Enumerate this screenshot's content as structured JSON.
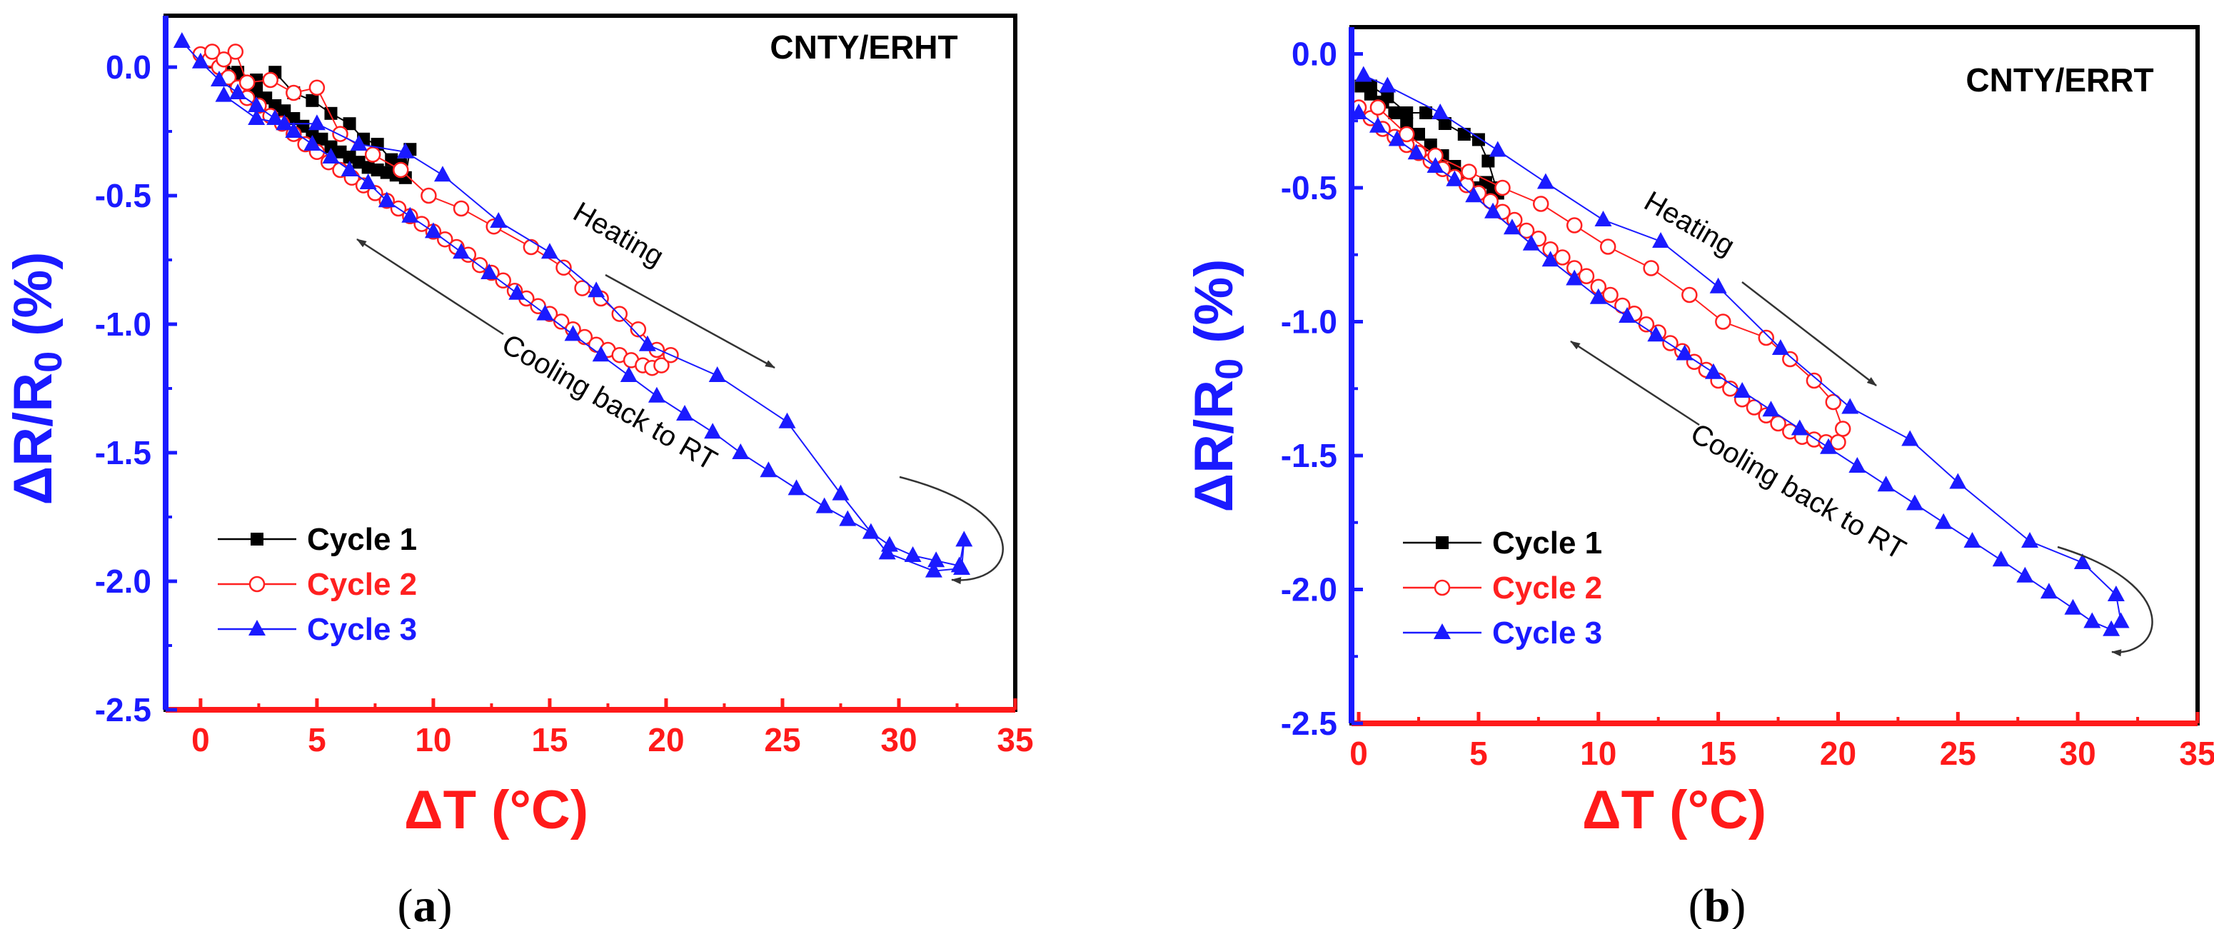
{
  "colors": {
    "y_axis": "#1a1aff",
    "x_axis": "#ff1a1a",
    "frame": "#000000",
    "cycle1": "#000000",
    "cycle2": "#ff2020",
    "cycle3": "#1a1aff",
    "annotation": "#333333"
  },
  "chart_data": [
    {
      "type": "line",
      "caption_open": "(",
      "caption_letter": "a",
      "caption_close": ")",
      "title": "CNTY/ERHT",
      "xlabel": "ΔT (°C)",
      "ylabel_main": "ΔR/R",
      "ylabel_sub": "0",
      "ylabel_unit": " (%)",
      "xlim": [
        -1.5,
        35
      ],
      "ylim": [
        -2.5,
        0.2
      ],
      "xticks": [
        0,
        5,
        10,
        15,
        20,
        25,
        30,
        35
      ],
      "xtick_labels": [
        "0",
        "5",
        "10",
        "15",
        "20",
        "25",
        "30",
        "35"
      ],
      "yticks": [
        0.0,
        -0.5,
        -1.0,
        -1.5,
        -2.0,
        -2.5
      ],
      "ytick_labels": [
        "0.0",
        "-0.5",
        "-1.0",
        "-1.5",
        "-2.0",
        "-2.5"
      ],
      "legend_position": "bottom-left",
      "annotations": {
        "heating": "Heating",
        "cooling": "Cooling back to RT"
      },
      "series": [
        {
          "name": "Cycle 1",
          "marker": "square-filled",
          "x": [
            0.2,
            0.6,
            1.0,
            1.5,
            2.0,
            2.4,
            2.8,
            3.2,
            3.6,
            4.0,
            4.4,
            4.8,
            5.2,
            5.6,
            6.0,
            6.4,
            6.8,
            7.2,
            7.6,
            8.0,
            8.4,
            8.8,
            9.0,
            8.6,
            8.2,
            7.6,
            7.0,
            6.4,
            5.6,
            4.8,
            4.0,
            3.2,
            2.4,
            1.6,
            0.8
          ],
          "y": [
            0.03,
            0.02,
            -0.02,
            -0.05,
            -0.08,
            -0.1,
            -0.12,
            -0.15,
            -0.17,
            -0.2,
            -0.23,
            -0.26,
            -0.28,
            -0.31,
            -0.33,
            -0.35,
            -0.37,
            -0.39,
            -0.4,
            -0.41,
            -0.42,
            -0.43,
            -0.32,
            -0.38,
            -0.36,
            -0.3,
            -0.28,
            -0.22,
            -0.18,
            -0.13,
            -0.1,
            -0.02,
            -0.05,
            -0.02,
            0.02
          ]
        },
        {
          "name": "Cycle 2",
          "marker": "circle-open",
          "x": [
            0.0,
            0.4,
            0.8,
            1.2,
            1.6,
            2.0,
            2.5,
            3.0,
            3.5,
            4.0,
            4.5,
            5.0,
            5.5,
            6.0,
            6.5,
            7.0,
            7.5,
            8.0,
            8.5,
            9.0,
            9.5,
            10.0,
            10.5,
            11.0,
            11.5,
            12.0,
            12.5,
            13.0,
            13.5,
            14.0,
            14.5,
            15.0,
            15.5,
            16.0,
            16.5,
            17.0,
            17.5,
            18.0,
            18.5,
            19.0,
            19.4,
            19.8,
            20.2,
            19.6,
            18.8,
            18.0,
            17.2,
            16.4,
            15.6,
            14.2,
            12.6,
            11.2,
            9.8,
            8.6,
            7.4,
            6.0,
            5.0,
            4.0,
            3.0,
            2.0,
            1.5,
            1.0,
            0.5
          ],
          "y": [
            0.05,
            0.03,
            0.0,
            -0.04,
            -0.08,
            -0.12,
            -0.15,
            -0.19,
            -0.22,
            -0.26,
            -0.3,
            -0.33,
            -0.37,
            -0.4,
            -0.43,
            -0.46,
            -0.49,
            -0.52,
            -0.55,
            -0.58,
            -0.61,
            -0.64,
            -0.67,
            -0.7,
            -0.73,
            -0.77,
            -0.8,
            -0.83,
            -0.87,
            -0.9,
            -0.93,
            -0.96,
            -0.99,
            -1.02,
            -1.05,
            -1.08,
            -1.1,
            -1.12,
            -1.14,
            -1.16,
            -1.17,
            -1.16,
            -1.12,
            -1.1,
            -1.02,
            -0.96,
            -0.9,
            -0.86,
            -0.78,
            -0.7,
            -0.62,
            -0.55,
            -0.5,
            -0.4,
            -0.34,
            -0.26,
            -0.08,
            -0.1,
            -0.05,
            -0.06,
            0.06,
            0.03,
            0.06
          ]
        },
        {
          "name": "Cycle 3",
          "marker": "triangle-filled",
          "x": [
            -0.8,
            0.0,
            0.8,
            1.6,
            2.4,
            3.2,
            4.0,
            4.8,
            5.6,
            6.4,
            7.2,
            8.0,
            9.0,
            10.0,
            11.2,
            12.4,
            13.6,
            14.8,
            16.0,
            17.2,
            18.4,
            19.6,
            20.8,
            22.0,
            23.2,
            24.4,
            25.6,
            26.8,
            27.8,
            28.8,
            29.6,
            30.6,
            31.6,
            32.6,
            32.8,
            32.7,
            31.5,
            29.5,
            27.5,
            25.2,
            22.2,
            19.2,
            17.0,
            15.0,
            12.8,
            10.4,
            8.8,
            6.8,
            5.0,
            3.6,
            2.4,
            1.0
          ],
          "y": [
            0.1,
            0.02,
            -0.05,
            -0.1,
            -0.15,
            -0.2,
            -0.25,
            -0.3,
            -0.35,
            -0.4,
            -0.45,
            -0.52,
            -0.58,
            -0.64,
            -0.72,
            -0.8,
            -0.88,
            -0.96,
            -1.04,
            -1.12,
            -1.2,
            -1.28,
            -1.35,
            -1.42,
            -1.5,
            -1.57,
            -1.64,
            -1.71,
            -1.76,
            -1.81,
            -1.86,
            -1.9,
            -1.92,
            -1.94,
            -1.84,
            -1.95,
            -1.96,
            -1.89,
            -1.66,
            -1.38,
            -1.2,
            -1.08,
            -0.87,
            -0.72,
            -0.6,
            -0.42,
            -0.33,
            -0.3,
            -0.22,
            -0.22,
            -0.2,
            -0.11
          ]
        }
      ]
    },
    {
      "type": "line",
      "caption_open": "(",
      "caption_letter": "b",
      "caption_close": ")",
      "title": "CNTY/ERRT",
      "xlabel": "ΔT (°C)",
      "ylabel_main": "ΔR/R",
      "ylabel_sub": "0",
      "ylabel_unit": " (%)",
      "xlim": [
        -0.3,
        35
      ],
      "ylim": [
        -2.5,
        0.1
      ],
      "xticks": [
        0,
        5,
        10,
        15,
        20,
        25,
        30,
        35
      ],
      "xtick_labels": [
        "0",
        "5",
        "10",
        "15",
        "20",
        "25",
        "30",
        "35"
      ],
      "yticks": [
        0.0,
        -0.5,
        -1.0,
        -1.5,
        -2.0,
        -2.5
      ],
      "ytick_labels": [
        "0.0",
        "-0.5",
        "-1.0",
        "-1.5",
        "-2.0",
        "-2.5"
      ],
      "legend_position": "bottom-left",
      "annotations": {
        "heating": "Heating",
        "cooling": "Cooling back to RT"
      },
      "series": [
        {
          "name": "Cycle 1",
          "marker": "square-filled",
          "x": [
            0.1,
            0.5,
            1.0,
            1.5,
            2.0,
            2.5,
            3.0,
            3.5,
            4.0,
            4.5,
            5.0,
            5.3,
            5.6,
            5.8,
            5.4,
            5.0,
            4.4,
            3.6,
            2.8,
            2.0,
            1.2,
            0.5
          ],
          "y": [
            -0.12,
            -0.15,
            -0.18,
            -0.22,
            -0.26,
            -0.3,
            -0.34,
            -0.38,
            -0.42,
            -0.46,
            -0.5,
            -0.48,
            -0.5,
            -0.52,
            -0.4,
            -0.32,
            -0.3,
            -0.26,
            -0.22,
            -0.22,
            -0.16,
            -0.12
          ]
        },
        {
          "name": "Cycle 2",
          "marker": "circle-open",
          "x": [
            0.0,
            0.5,
            1.0,
            1.5,
            2.0,
            2.5,
            3.0,
            3.5,
            4.0,
            4.5,
            5.0,
            5.5,
            6.0,
            6.5,
            7.0,
            7.5,
            8.0,
            8.5,
            9.0,
            9.5,
            10.0,
            10.5,
            11.0,
            11.5,
            12.0,
            12.5,
            13.0,
            13.5,
            14.0,
            14.5,
            15.0,
            15.5,
            16.0,
            16.5,
            17.0,
            17.5,
            18.0,
            18.5,
            19.0,
            19.5,
            20.0,
            20.2,
            19.8,
            19.0,
            18.0,
            17.0,
            15.2,
            13.8,
            12.2,
            10.4,
            9.0,
            7.6,
            6.0,
            4.6,
            3.2,
            2.0,
            0.8
          ],
          "y": [
            -0.2,
            -0.24,
            -0.28,
            -0.31,
            -0.34,
            -0.37,
            -0.4,
            -0.43,
            -0.46,
            -0.49,
            -0.52,
            -0.55,
            -0.59,
            -0.62,
            -0.66,
            -0.69,
            -0.73,
            -0.76,
            -0.8,
            -0.83,
            -0.87,
            -0.9,
            -0.94,
            -0.97,
            -1.01,
            -1.04,
            -1.08,
            -1.11,
            -1.15,
            -1.18,
            -1.22,
            -1.25,
            -1.29,
            -1.32,
            -1.35,
            -1.38,
            -1.41,
            -1.43,
            -1.44,
            -1.45,
            -1.45,
            -1.4,
            -1.3,
            -1.22,
            -1.14,
            -1.06,
            -1.0,
            -0.9,
            -0.8,
            -0.72,
            -0.64,
            -0.56,
            -0.5,
            -0.44,
            -0.38,
            -0.3,
            -0.2
          ]
        },
        {
          "name": "Cycle 3",
          "marker": "triangle-filled",
          "x": [
            0.0,
            0.8,
            1.6,
            2.4,
            3.2,
            4.0,
            4.8,
            5.6,
            6.4,
            7.2,
            8.0,
            9.0,
            10.0,
            11.2,
            12.4,
            13.6,
            14.8,
            16.0,
            17.2,
            18.4,
            19.6,
            20.8,
            22.0,
            23.2,
            24.4,
            25.6,
            26.8,
            27.8,
            28.8,
            29.8,
            30.6,
            31.4,
            31.8,
            31.6,
            30.2,
            28.0,
            25.0,
            23.0,
            20.5,
            17.6,
            15.0,
            12.6,
            10.2,
            7.8,
            5.8,
            3.4,
            1.2,
            0.2
          ],
          "y": [
            -0.22,
            -0.27,
            -0.32,
            -0.37,
            -0.42,
            -0.47,
            -0.53,
            -0.59,
            -0.65,
            -0.71,
            -0.77,
            -0.84,
            -0.91,
            -0.98,
            -1.05,
            -1.12,
            -1.19,
            -1.26,
            -1.33,
            -1.4,
            -1.47,
            -1.54,
            -1.61,
            -1.68,
            -1.75,
            -1.82,
            -1.89,
            -1.95,
            -2.01,
            -2.07,
            -2.12,
            -2.15,
            -2.12,
            -2.02,
            -1.9,
            -1.82,
            -1.6,
            -1.44,
            -1.32,
            -1.1,
            -0.87,
            -0.7,
            -0.62,
            -0.48,
            -0.36,
            -0.22,
            -0.12,
            -0.08
          ]
        }
      ]
    }
  ]
}
